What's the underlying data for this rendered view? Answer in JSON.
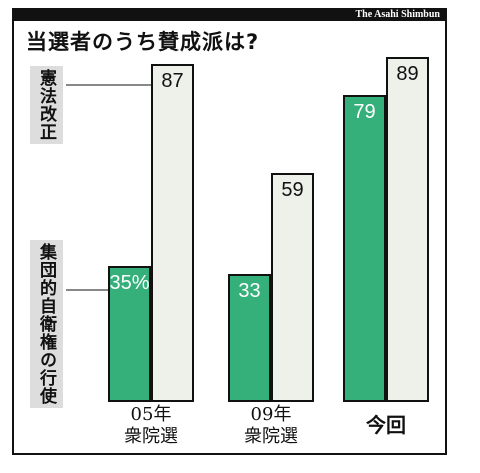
{
  "credit": "The Asahi Shimbun",
  "chart_data": {
    "type": "bar",
    "title": "当選者のうち賛成派は?",
    "categories": [
      "05年\n衆院選",
      "09年\n衆院選",
      "今回"
    ],
    "series": [
      {
        "name": "集団的自衛権の行使",
        "color": "#35b07a",
        "values": [
          35,
          33,
          79
        ],
        "value_labels": [
          "35%",
          "33",
          "79"
        ]
      },
      {
        "name": "憲法改正",
        "color": "#eef0ea",
        "values": [
          87,
          59,
          89
        ]
      }
    ]
  }
}
